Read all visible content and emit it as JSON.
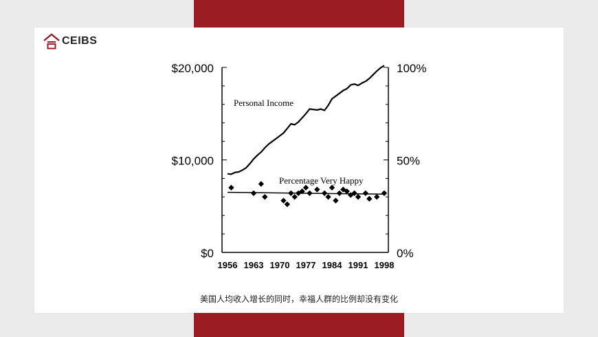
{
  "brand": {
    "name": "CEIBS",
    "accent": "#9b1c22",
    "logo_icon": "ceibs-logo-icon"
  },
  "caption": "美国人均收入增长的同时，幸福人群的比例却没有变化",
  "chart_data": {
    "type": "line",
    "title": "",
    "xlabel": "",
    "x_ticks": [
      "1956",
      "1963",
      "1970",
      "1977",
      "1984",
      "1991",
      "1998"
    ],
    "xlim": [
      1956,
      1998
    ],
    "y_left": {
      "ticks": [
        "$0",
        "$10,000",
        "$20,000"
      ],
      "ylim": [
        0,
        20000
      ]
    },
    "y_right": {
      "ticks": [
        "0%",
        "50%",
        "100%"
      ],
      "ylim": [
        0,
        100
      ]
    },
    "grid": false,
    "series": [
      {
        "name": "Personal Income",
        "style": "line",
        "axis": "left",
        "color": "#000000",
        "x": [
          1956,
          1957,
          1958,
          1959,
          1960,
          1961,
          1962,
          1963,
          1964,
          1965,
          1966,
          1967,
          1968,
          1969,
          1970,
          1971,
          1972,
          1973,
          1974,
          1975,
          1976,
          1977,
          1978,
          1979,
          1980,
          1981,
          1982,
          1983,
          1984,
          1985,
          1986,
          1987,
          1988,
          1989,
          1990,
          1991,
          1992,
          1993,
          1994,
          1995,
          1996,
          1997,
          1998
        ],
        "values": [
          8500,
          8450,
          8650,
          8700,
          8900,
          9150,
          9600,
          10100,
          10500,
          10850,
          11300,
          11700,
          12000,
          12300,
          12600,
          12900,
          13400,
          13900,
          13800,
          14100,
          14550,
          15000,
          15500,
          15450,
          15400,
          15500,
          15350,
          15900,
          16600,
          16900,
          17200,
          17500,
          17700,
          18100,
          18200,
          18050,
          18300,
          18500,
          18800,
          19200,
          19600,
          19950,
          20200
        ]
      },
      {
        "name": "Percentage Very Happy",
        "style": "scatter",
        "axis": "right",
        "color": "#000000",
        "x": [
          1957,
          1963,
          1965,
          1966,
          1971,
          1972,
          1973,
          1974,
          1975,
          1976,
          1977,
          1978,
          1980,
          1982,
          1983,
          1984,
          1985,
          1986,
          1987,
          1988,
          1989,
          1990,
          1991,
          1993,
          1994,
          1996,
          1998
        ],
        "values": [
          35,
          32,
          37,
          30,
          28,
          26,
          32,
          30,
          32,
          33,
          35,
          32,
          34,
          32,
          30,
          35,
          28,
          32,
          34,
          33,
          31,
          32,
          30,
          32,
          29,
          30,
          32
        ]
      },
      {
        "name": "Percentage Very Happy trend",
        "style": "trend",
        "axis": "right",
        "color": "#000000",
        "x": [
          1956,
          1998
        ],
        "values": [
          32.5,
          31.5
        ]
      }
    ],
    "annotations": [
      "Personal Income",
      "Percentage Very Happy"
    ]
  }
}
